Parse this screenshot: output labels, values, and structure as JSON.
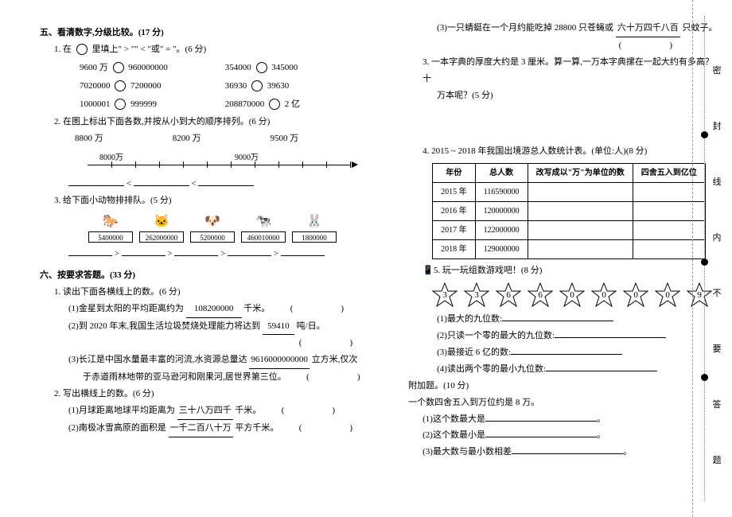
{
  "left": {
    "section5_title": "五、看清数字,分级比较。(17 分)",
    "q1_title": "1. 在 ◯ 里填上\" > \"\" < \"或\" = \"。(6 分)",
    "compare": [
      [
        "9600 万",
        "960000000",
        "354000",
        "345000"
      ],
      [
        "7020000",
        "7200000",
        "36930",
        "39630"
      ],
      [
        "1000001",
        "999999",
        "208870000",
        "2 亿"
      ]
    ],
    "q2_title": "2. 在图上标出下面各数,并按从小到大的顺序排列。(6 分)",
    "labels_8800": "8800 万",
    "labels_8200": "8200 万",
    "labels_9500": "9500 万",
    "axis_labels": [
      "8000万",
      "9000万"
    ],
    "q3_title": "3. 给下面小动物排排队。(5 分)",
    "animals": [
      {
        "pic": "🐎",
        "num": "5400000"
      },
      {
        "pic": "🐱",
        "num": "262000000"
      },
      {
        "pic": "🐶",
        "num": "5200000"
      },
      {
        "pic": "🐄",
        "num": "460010000"
      },
      {
        "pic": "🐰",
        "num": "1800000"
      }
    ],
    "section6_title": "六、按要求答题。(33 分)",
    "q61_title": "1. 读出下面各横线上的数。(6 分)",
    "q61_1a": "(1)金星到太阳的平均距离约为",
    "q61_1b": "108200000",
    "q61_1c": "千米。",
    "q61_2a": "(2)到 2020 年末,我国生活垃圾焚烧处理能力将达到",
    "q61_2b": "59410",
    "q61_2c": "吨/日。",
    "q61_3a": "(3)长江是中国水量最丰富的河流,水资源总量达",
    "q61_3b": "9616000000000",
    "q61_3c": "立方米,仅次",
    "q61_3d": "于赤道雨林地带的亚马逊河和刚果河,居世界第三位。",
    "q62_title": "2. 写出横线上的数。(6 分)",
    "q62_1a": "(1)月球距离地球平均距离为",
    "q62_1b": "三十八万四千",
    "q62_1c": "千米。",
    "q62_2a": "(2)南极冰雪高原的面积是",
    "q62_2b": "一千二百八十万",
    "q62_2c": "平方千米。"
  },
  "right": {
    "q62_3a": "(3)一只蜻蜓在一个月约能吃掉 28800 只苍蝇或",
    "q62_3b": "六十万四千八百",
    "q62_3c": "只蚊子。",
    "q63a": "3. 一本字典的厚度大约是 3 厘米。算一算,一万本字典摞在一起大约有多高？十",
    "q63b": "万本呢？(5 分)",
    "q64": "4. 2015 ~ 2018 年我国出境游总人数统计表。(单位:人)(8 分)",
    "table": {
      "head": [
        "年份",
        "总人数",
        "改写成以\"万\"为单位的数",
        "四舍五入到亿位"
      ],
      "rows": [
        [
          "2015 年",
          "116590000",
          "",
          ""
        ],
        [
          "2016 年",
          "120000000",
          "",
          ""
        ],
        [
          "2017 年",
          "122000000",
          "",
          ""
        ],
        [
          "2018 年",
          "129000000",
          "",
          ""
        ]
      ]
    },
    "q65": "5. 玩一玩组数游戏吧！(8 分)",
    "stars": [
      "3",
      "3",
      "6",
      "6",
      "0",
      "0",
      "0",
      "0",
      "9"
    ],
    "q65_1": "(1)最大的九位数:",
    "q65_2": "(2)只读一个零的最大的九位数:",
    "q65_3": "(3)最接近 6 亿的数:",
    "q65_4": "(4)读出两个零的最小九位数:",
    "extra_title": "附加题。(10 分)",
    "extra_intro": "一个数四舍五入到万位约是 8 万。",
    "extra_1": "(1)这个数最大是",
    "extra_2": "(2)这个数最小是",
    "extra_3": "(3)最大数与最小数相差"
  },
  "margin": {
    "chars": [
      "密",
      "封",
      "线",
      "内",
      "不",
      "要",
      "答",
      "题"
    ],
    "char_color": "#333",
    "dot_positions": [
      165,
      325,
      470
    ]
  },
  "colors": {
    "bg": "#ffffff",
    "text": "#000000",
    "dashed": "#999999",
    "dotted": "#888888"
  }
}
